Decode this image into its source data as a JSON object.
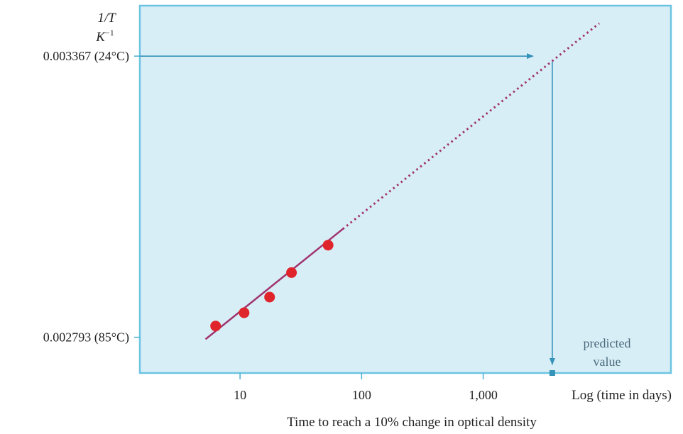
{
  "colors": {
    "plot_background": "#d8eef7",
    "plot_border": "#6cc4e2",
    "axis_color": "#4ab0d6",
    "point_color": "#e0242b",
    "fit_line_color": "#a0346e",
    "arrow_color": "#3592b8",
    "predicted_marker_color": "#3592b8"
  },
  "chart_data": {
    "type": "scatter",
    "title": "",
    "xlabel": "Time to reach a 10% change in optical density",
    "xlabel_end": "Log (time in days)",
    "ylabel_line1": "1/T",
    "ylabel_line2": "K",
    "ylabel_line2_sup": "−1",
    "x_scale": "log",
    "xlim": [
      1.5,
      35000
    ],
    "ylim": [
      0.00272,
      0.00347
    ],
    "x_ticks": [
      {
        "value": 10,
        "label": "10"
      },
      {
        "value": 100,
        "label": "100"
      },
      {
        "value": 1000,
        "label": "1,000"
      }
    ],
    "y_ticks": [
      {
        "value": 0.002793,
        "label": "0.002793 (85°C)"
      },
      {
        "value": 0.003367,
        "label": "0.003367 (24°C)"
      }
    ],
    "grid": false,
    "points": [
      {
        "x": 6.3,
        "y": 0.002816
      },
      {
        "x": 10.8,
        "y": 0.002843
      },
      {
        "x": 17.5,
        "y": 0.002875
      },
      {
        "x": 26.5,
        "y": 0.002925
      },
      {
        "x": 53,
        "y": 0.002981
      }
    ],
    "fit_solid": [
      {
        "x": 5.2,
        "y": 0.002789
      },
      {
        "x": 70,
        "y": 0.003014
      }
    ],
    "fit_extrapolated": [
      {
        "x": 70,
        "y": 0.003014
      },
      {
        "x": 9000,
        "y": 0.003434
      }
    ],
    "prediction": {
      "y": 0.003367,
      "x": 3700,
      "annotation_line1": "predicted",
      "annotation_line2": "value"
    }
  }
}
